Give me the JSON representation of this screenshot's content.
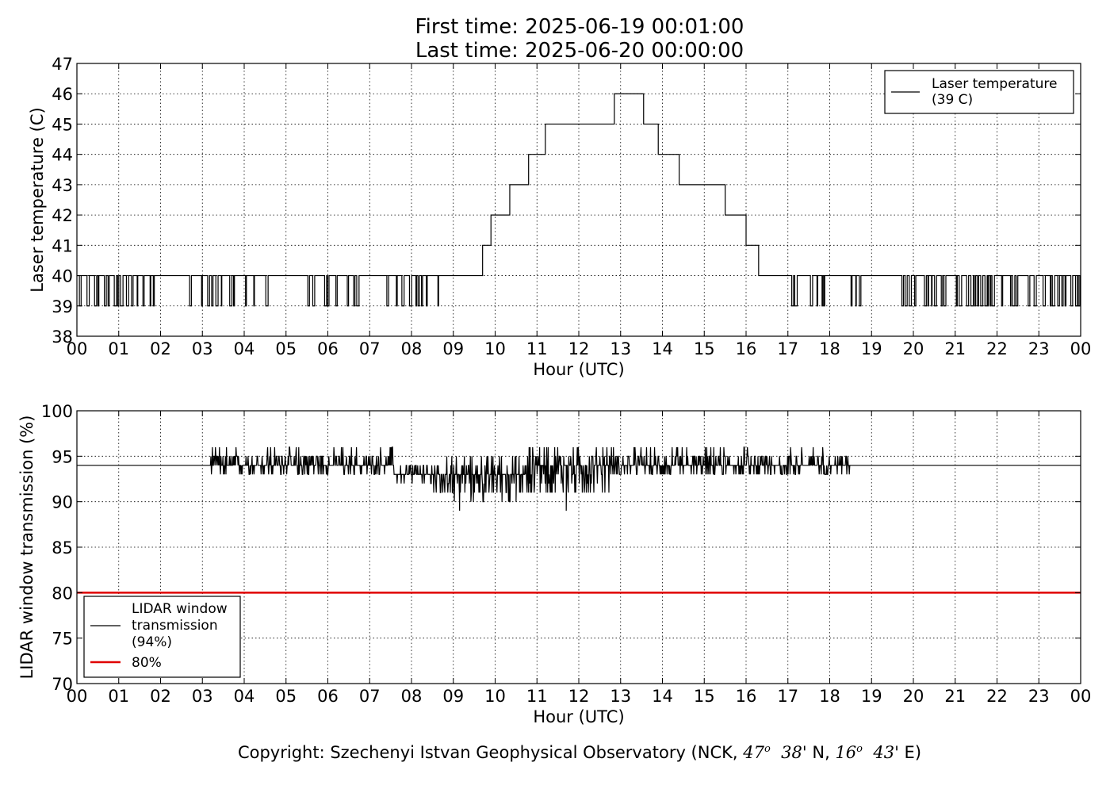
{
  "header": {
    "first_time": "First time: 2025-06-19 00:01:00",
    "last_time": "Last time: 2025-06-20 00:00:00"
  },
  "footer": {
    "copyright_prefix": "Copyright: Szechenyi Istvan Geophysical Observatory (NCK, ",
    "lat_deg": "47",
    "lat_min": "38'",
    "lat_hem": "N,",
    "lon_deg": "16",
    "lon_min": "43'",
    "lon_hem": "E)",
    "degree_sup": "o"
  },
  "chart_data": [
    {
      "type": "line",
      "xlabel": "Hour (UTC)",
      "ylabel": "Laser temperature (C)",
      "xlim": [
        0,
        24
      ],
      "ylim": [
        38,
        47
      ],
      "xticks": [
        0,
        1,
        2,
        3,
        4,
        5,
        6,
        7,
        8,
        9,
        10,
        11,
        12,
        13,
        14,
        15,
        16,
        17,
        18,
        19,
        20,
        21,
        22,
        23,
        24
      ],
      "xtick_labels": [
        "00",
        "01",
        "02",
        "03",
        "04",
        "05",
        "06",
        "07",
        "08",
        "09",
        "10",
        "11",
        "12",
        "13",
        "14",
        "15",
        "16",
        "17",
        "18",
        "19",
        "20",
        "21",
        "22",
        "23",
        "00"
      ],
      "yticks": [
        38,
        39,
        40,
        41,
        42,
        43,
        44,
        45,
        46,
        47
      ],
      "grid": true,
      "legend_position": "top-right",
      "series": [
        {
          "name": "Laser temperature\n(39 C)",
          "color": "#000000",
          "x": [
            0.0,
            9.7,
            9.7,
            9.9,
            9.9,
            10.35,
            10.35,
            10.8,
            10.8,
            11.2,
            11.2,
            12.85,
            12.85,
            13.55,
            13.55,
            13.9,
            13.9,
            14.4,
            14.4,
            15.5,
            15.5,
            16.0,
            16.0,
            16.3,
            16.3,
            24.0
          ],
          "y": [
            40,
            40,
            41,
            41,
            42,
            42,
            43,
            43,
            44,
            44,
            45,
            45,
            46,
            46,
            45,
            45,
            44,
            44,
            43,
            43,
            42,
            42,
            41,
            41,
            40,
            40
          ],
          "noise_ranges": [
            {
              "from": 0.0,
              "to": 1.5,
              "low": 39,
              "high": 40
            },
            {
              "from": 1.5,
              "to": 2.0,
              "low": 39,
              "high": 40
            },
            {
              "from": 2.6,
              "to": 4.6,
              "low": 39,
              "high": 40
            },
            {
              "from": 5.5,
              "to": 7.0,
              "low": 39,
              "high": 40
            },
            {
              "from": 7.4,
              "to": 8.8,
              "low": 39,
              "high": 40
            },
            {
              "from": 16.6,
              "to": 18.0,
              "low": 39,
              "high": 40
            },
            {
              "from": 18.4,
              "to": 18.8,
              "low": 39,
              "high": 40
            },
            {
              "from": 19.4,
              "to": 24.0,
              "low": 39,
              "high": 40
            }
          ]
        }
      ]
    },
    {
      "type": "line",
      "xlabel": "Hour (UTC)",
      "ylabel": "LIDAR window transmission (%)",
      "xlim": [
        0,
        24
      ],
      "ylim": [
        70,
        100
      ],
      "xticks": [
        0,
        1,
        2,
        3,
        4,
        5,
        6,
        7,
        8,
        9,
        10,
        11,
        12,
        13,
        14,
        15,
        16,
        17,
        18,
        19,
        20,
        21,
        22,
        23,
        24
      ],
      "xtick_labels": [
        "00",
        "01",
        "02",
        "03",
        "04",
        "05",
        "06",
        "07",
        "08",
        "09",
        "10",
        "11",
        "12",
        "13",
        "14",
        "15",
        "16",
        "17",
        "18",
        "19",
        "20",
        "21",
        "22",
        "23",
        "00"
      ],
      "yticks": [
        70,
        75,
        80,
        85,
        90,
        95,
        100
      ],
      "grid": true,
      "legend_position": "lower-left",
      "series": [
        {
          "name": "LIDAR window\ntransmission\n(94%)",
          "color": "#000000",
          "baseline": 94,
          "noise_from": 3.2,
          "noise_to": 18.5,
          "noise_profile": [
            {
              "from": 3.2,
              "to": 7.6,
              "center": 94.3,
              "spread": 1.4
            },
            {
              "from": 7.6,
              "to": 8.4,
              "center": 93,
              "spread": 1.2
            },
            {
              "from": 8.4,
              "to": 10.8,
              "center": 92.6,
              "spread": 2.6
            },
            {
              "from": 10.8,
              "to": 12.8,
              "center": 93.6,
              "spread": 2.8
            },
            {
              "from": 12.8,
              "to": 18.5,
              "center": 94.2,
              "spread": 1.5
            }
          ],
          "min_points": [
            {
              "x": 9.15,
              "y": 89
            },
            {
              "x": 11.7,
              "y": 89
            },
            {
              "x": 10.5,
              "y": 90
            }
          ],
          "max_points": [
            {
              "x": 4.7,
              "y": 96
            },
            {
              "x": 11.7,
              "y": 96
            },
            {
              "x": 13.6,
              "y": 96
            },
            {
              "x": 16.95,
              "y": 96
            }
          ]
        },
        {
          "name": "80%",
          "color": "#e00000",
          "x": [
            0,
            24
          ],
          "y": [
            80,
            80
          ]
        }
      ]
    }
  ]
}
